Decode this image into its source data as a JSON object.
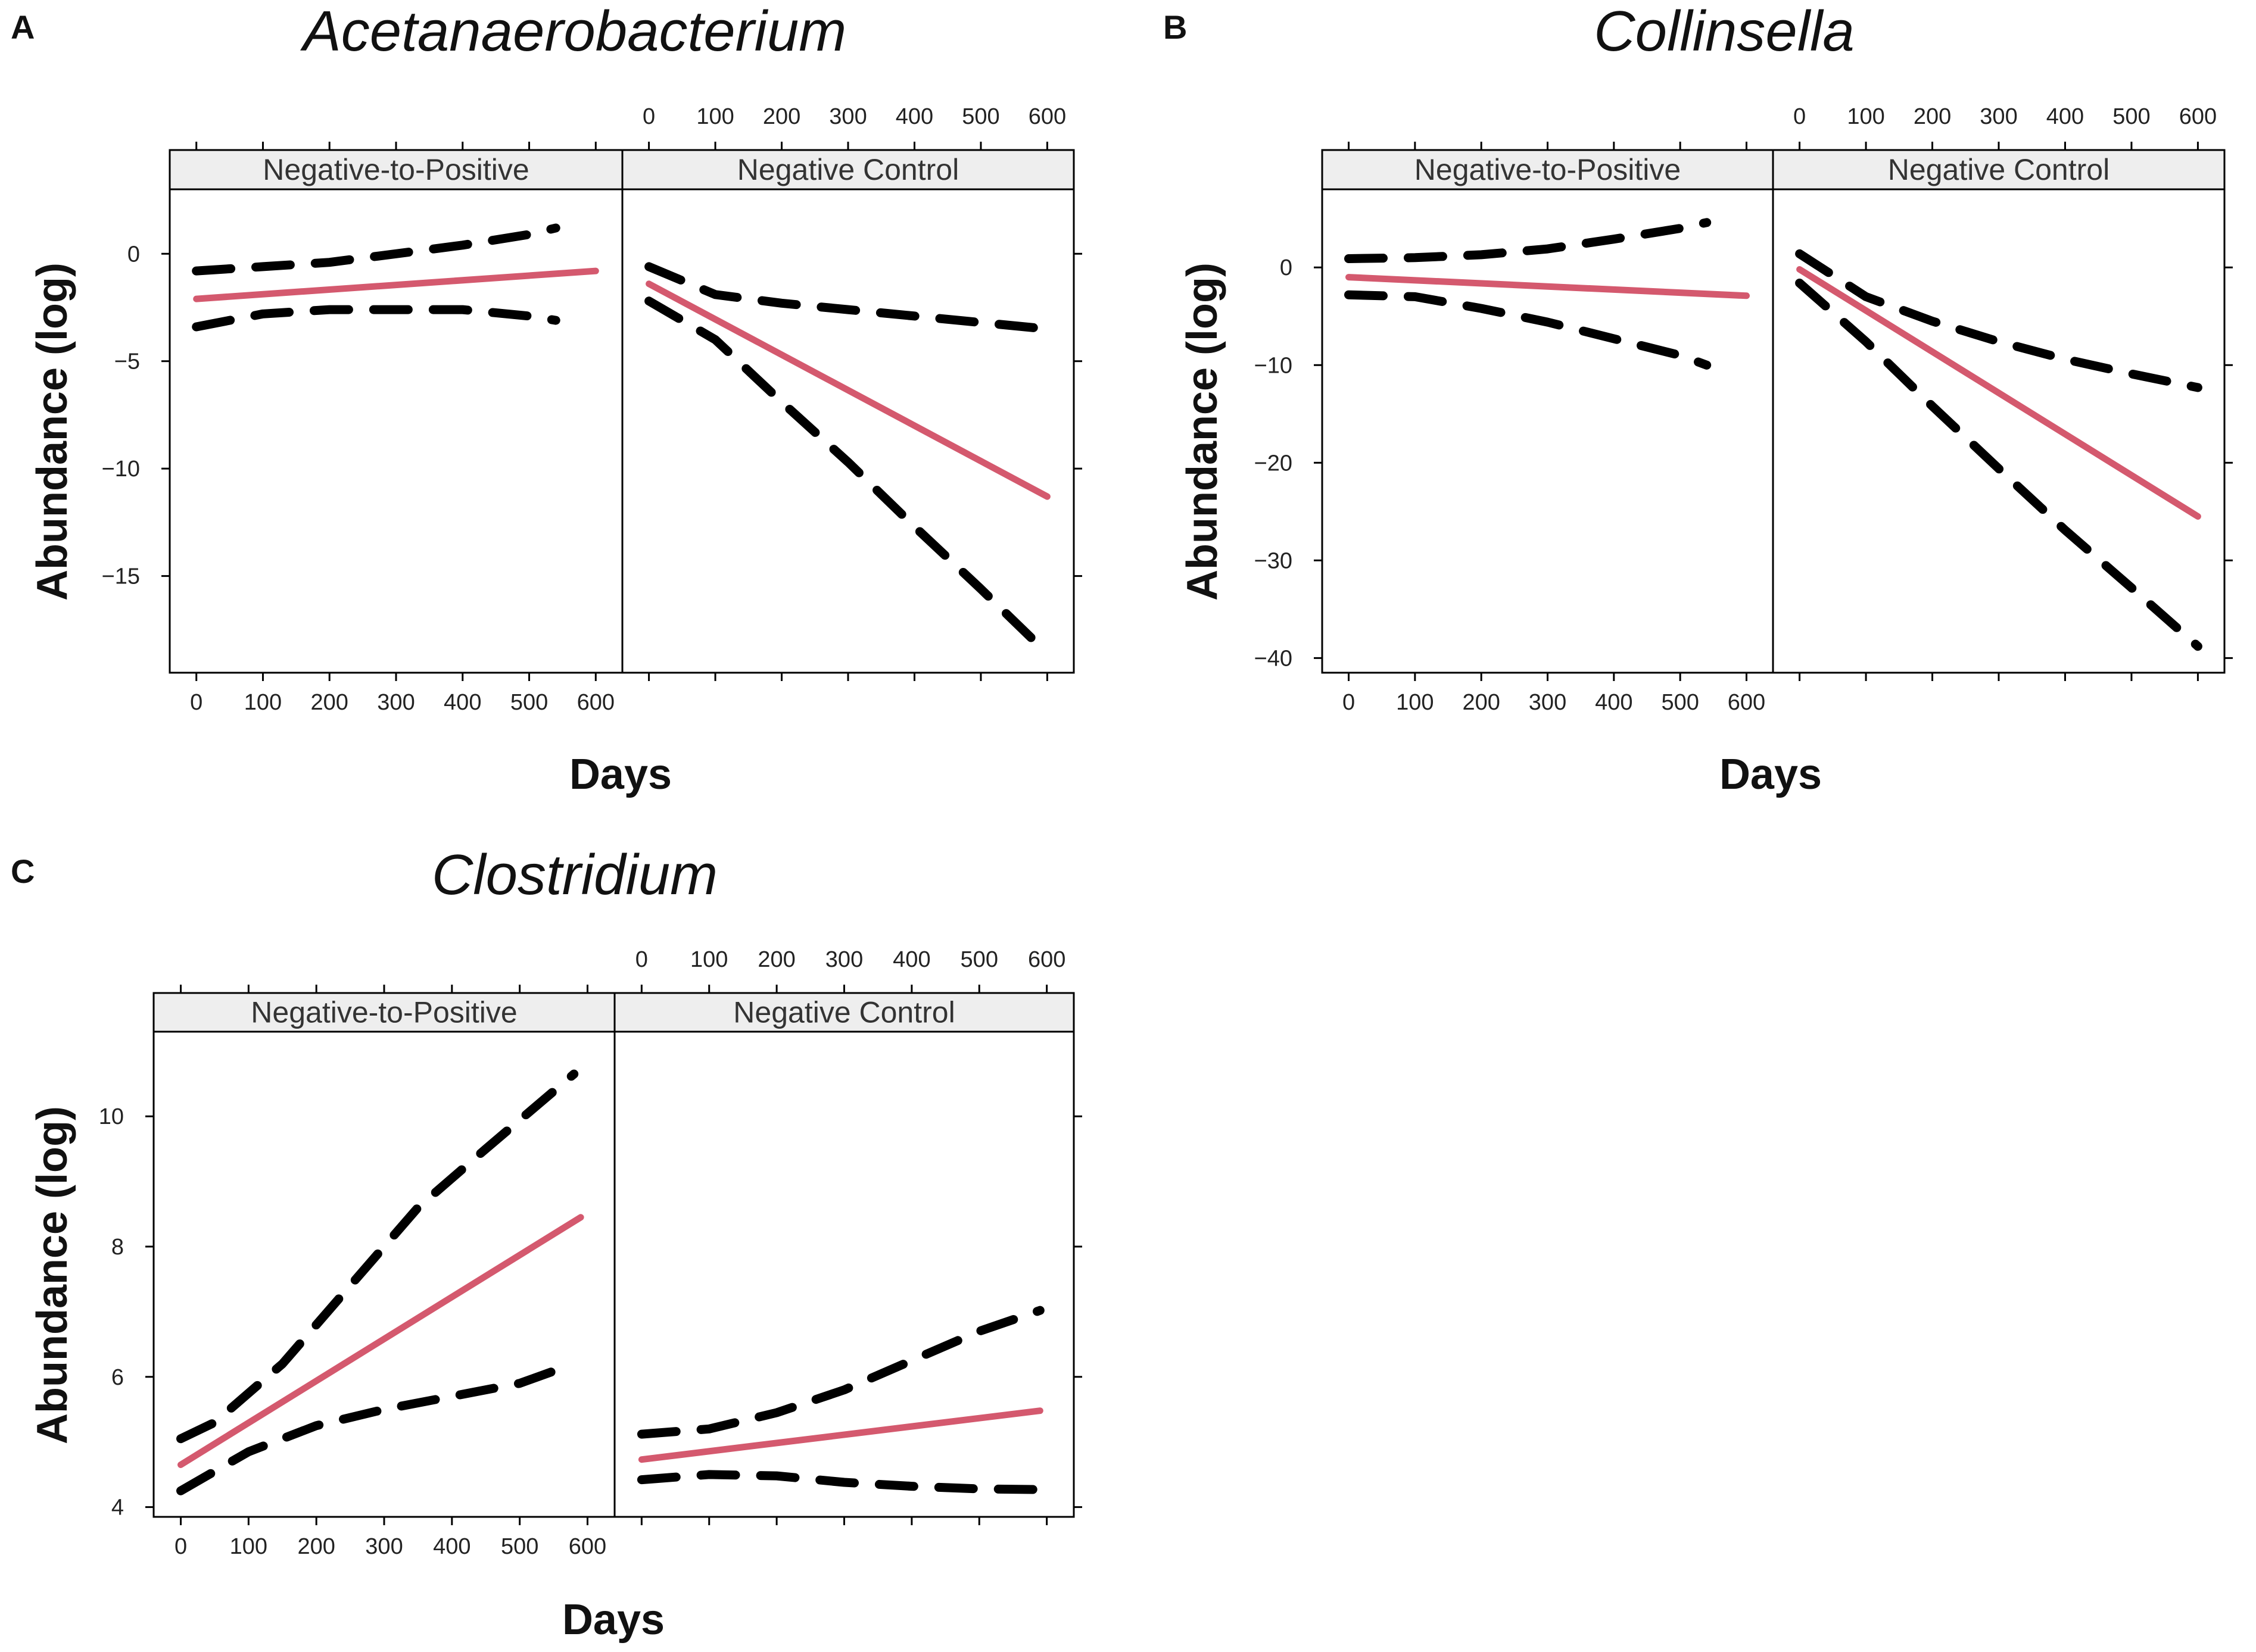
{
  "colors": {
    "fit": "#d4596e",
    "ci": "#000000",
    "strip_bg": "#eeeeee",
    "frame": "#000000"
  },
  "chart_data": [
    {
      "panel_letter": "A",
      "type": "line",
      "title": "Acetanaerobacterium",
      "xlabel": "Days",
      "ylabel": "Abundance (log)",
      "xlim": [
        -40,
        640
      ],
      "ylim": [
        -19.5,
        3
      ],
      "xticks": [
        0,
        100,
        200,
        300,
        400,
        500,
        600
      ],
      "yticks": [
        0,
        -5,
        -10,
        -15
      ],
      "xtick_labels": [
        "0",
        "100",
        "200",
        "300",
        "400",
        "500",
        "600"
      ],
      "ytick_labels": [
        "0",
        "−5",
        "−10",
        "−15"
      ],
      "panels": [
        {
          "label": "Negative-to-Positive",
          "series": [
            {
              "name": "fit",
              "style": "solid",
              "x": [
                0,
                600
              ],
              "y": [
                -2.1,
                -0.8
              ]
            },
            {
              "name": "upper",
              "style": "dashed",
              "x": [
                0,
                100,
                200,
                300,
                400,
                500,
                540
              ],
              "y": [
                -0.8,
                -0.6,
                -0.4,
                0.0,
                0.4,
                0.9,
                1.2
              ]
            },
            {
              "name": "lower",
              "style": "dashed",
              "x": [
                0,
                100,
                200,
                300,
                400,
                500,
                540
              ],
              "y": [
                -3.4,
                -2.8,
                -2.6,
                -2.6,
                -2.6,
                -2.9,
                -3.1
              ]
            }
          ]
        },
        {
          "label": "Negative Control",
          "series": [
            {
              "name": "fit",
              "style": "solid",
              "x": [
                0,
                600
              ],
              "y": [
                -1.4,
                -11.3
              ]
            },
            {
              "name": "upper",
              "style": "dashed",
              "x": [
                0,
                100,
                200,
                300,
                400,
                500,
                600
              ],
              "y": [
                -0.6,
                -1.9,
                -2.3,
                -2.6,
                -2.9,
                -3.2,
                -3.5
              ]
            },
            {
              "name": "lower",
              "style": "dashed",
              "x": [
                0,
                100,
                200,
                300,
                400,
                500,
                600
              ],
              "y": [
                -2.2,
                -4.0,
                -6.9,
                -9.7,
                -12.7,
                -15.6,
                -18.6
              ]
            }
          ]
        }
      ]
    },
    {
      "panel_letter": "B",
      "type": "line",
      "title": "Collinsella",
      "xlabel": "Days",
      "ylabel": "Abundance (log)",
      "xlim": [
        -40,
        640
      ],
      "ylim": [
        -41.5,
        8
      ],
      "xticks": [
        0,
        100,
        200,
        300,
        400,
        500,
        600
      ],
      "yticks": [
        0,
        -10,
        -20,
        -30,
        -40
      ],
      "xtick_labels": [
        "0",
        "100",
        "200",
        "300",
        "400",
        "500",
        "600"
      ],
      "ytick_labels": [
        "0",
        "−10",
        "−20",
        "−30",
        "−40"
      ],
      "panels": [
        {
          "label": "Negative-to-Positive",
          "series": [
            {
              "name": "fit",
              "style": "solid",
              "x": [
                0,
                600
              ],
              "y": [
                -1.0,
                -2.9
              ]
            },
            {
              "name": "upper",
              "style": "dashed",
              "x": [
                0,
                100,
                200,
                300,
                400,
                500,
                540
              ],
              "y": [
                0.9,
                1.0,
                1.3,
                1.9,
                2.9,
                4.0,
                4.6
              ]
            },
            {
              "name": "lower",
              "style": "dashed",
              "x": [
                0,
                100,
                200,
                300,
                400,
                500,
                540
              ],
              "y": [
                -2.8,
                -3.0,
                -4.2,
                -5.6,
                -7.3,
                -9.0,
                -10.0
              ]
            }
          ]
        },
        {
          "label": "Negative Control",
          "series": [
            {
              "name": "fit",
              "style": "solid",
              "x": [
                0,
                600
              ],
              "y": [
                -0.2,
                -25.5
              ]
            },
            {
              "name": "upper",
              "style": "dashed",
              "x": [
                0,
                100,
                200,
                300,
                400,
                500,
                600
              ],
              "y": [
                1.4,
                -3.0,
                -5.5,
                -7.6,
                -9.4,
                -10.9,
                -12.3
              ]
            },
            {
              "name": "lower",
              "style": "dashed",
              "x": [
                0,
                100,
                200,
                300,
                400,
                500,
                600
              ],
              "y": [
                -1.6,
                -7.6,
                -14.2,
                -20.6,
                -26.9,
                -32.8,
                -38.8
              ]
            }
          ]
        }
      ]
    },
    {
      "panel_letter": "C",
      "type": "line",
      "title": "Clostridium",
      "xlabel": "Days",
      "ylabel": "Abundance (log)",
      "xlim": [
        -40,
        640
      ],
      "ylim": [
        3.85,
        11.3
      ],
      "xticks": [
        0,
        100,
        200,
        300,
        400,
        500,
        600
      ],
      "yticks": [
        4,
        6,
        8,
        10
      ],
      "xtick_labels": [
        "0",
        "100",
        "200",
        "300",
        "400",
        "500",
        "600"
      ],
      "ytick_labels": [
        "4",
        "6",
        "8",
        "10"
      ],
      "panels": [
        {
          "label": "Negative-to-Positive",
          "series": [
            {
              "name": "fit",
              "style": "solid",
              "x": [
                0,
                590
              ],
              "y": [
                4.65,
                8.45
              ]
            },
            {
              "name": "upper",
              "style": "dashed",
              "x": [
                0,
                50,
                150,
                250,
                350,
                450,
                580
              ],
              "y": [
                5.05,
                5.3,
                6.2,
                7.4,
                8.6,
                9.5,
                10.65
              ]
            },
            {
              "name": "lower",
              "style": "dashed",
              "x": [
                0,
                100,
                200,
                300,
                400,
                500,
                580
              ],
              "y": [
                4.25,
                4.85,
                5.25,
                5.5,
                5.7,
                5.9,
                6.2
              ]
            }
          ]
        },
        {
          "label": "Negative Control",
          "series": [
            {
              "name": "fit",
              "style": "solid",
              "x": [
                0,
                590
              ],
              "y": [
                4.73,
                5.48
              ]
            },
            {
              "name": "upper",
              "style": "dashed",
              "x": [
                0,
                100,
                200,
                300,
                400,
                500,
                590
              ],
              "y": [
                5.12,
                5.2,
                5.45,
                5.8,
                6.25,
                6.7,
                7.02
              ]
            },
            {
              "name": "lower",
              "style": "dashed",
              "x": [
                0,
                100,
                200,
                300,
                400,
                500,
                590
              ],
              "y": [
                4.42,
                4.5,
                4.48,
                4.38,
                4.32,
                4.28,
                4.27
              ]
            }
          ]
        }
      ]
    }
  ]
}
